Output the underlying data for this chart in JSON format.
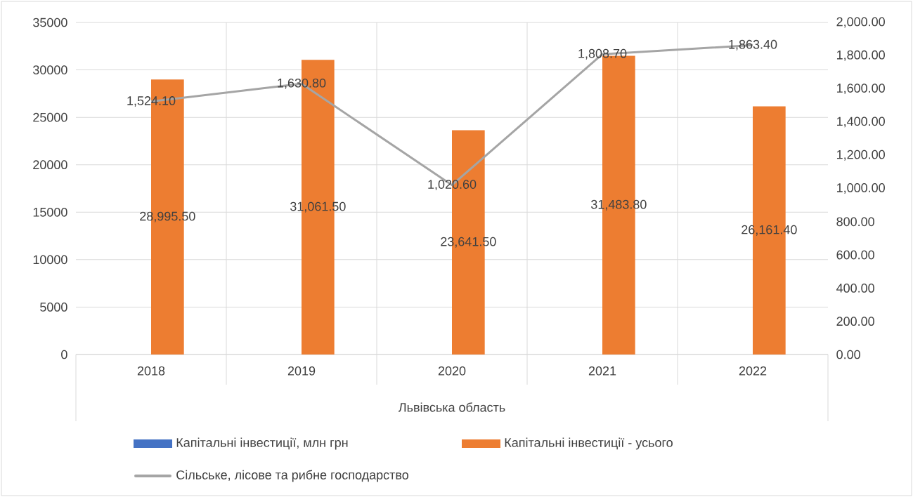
{
  "chart_data": {
    "type": "bar",
    "categories": [
      "2018",
      "2019",
      "2020",
      "2021",
      "2022"
    ],
    "xlabel": "Львівська область",
    "series": [
      {
        "name": "Капітальні інвестиції, млн грн",
        "color": "#4472c4",
        "values": [
          null,
          null,
          null,
          null,
          null
        ]
      },
      {
        "name": "Капітальні інвестиції - усього",
        "color": "#ed7d31",
        "values": [
          28995.5,
          31061.5,
          23641.5,
          31483.8,
          26161.4
        ],
        "value_labels": [
          "28,995.50",
          "31,061.50",
          "23,641.50",
          "31,483.80",
          "26,161.40"
        ]
      },
      {
        "name": "Сільське, лісове та рибне господарство",
        "color": "#a5a5a5",
        "type": "line",
        "axis": "y2",
        "line_style": "solid",
        "values": [
          1524.1,
          1630.8,
          1020.6,
          1808.7,
          1863.4
        ],
        "value_labels": [
          "1,524.10",
          "1,630.80",
          "1,020.60",
          "1,808.70",
          "1,863.40"
        ]
      }
    ],
    "ylim": [
      0,
      35000
    ],
    "yticks": [
      0,
      5000,
      10000,
      15000,
      20000,
      25000,
      30000,
      35000
    ],
    "y2lim": [
      0,
      2000
    ],
    "y2ticks": [
      {
        "value": 0,
        "label": "0.00"
      },
      {
        "value": 200,
        "label": "200.00"
      },
      {
        "value": 400,
        "label": "400.00"
      },
      {
        "value": 600,
        "label": "600.00"
      },
      {
        "value": 800,
        "label": "800.00"
      },
      {
        "value": 1000,
        "label": "1,000.00"
      },
      {
        "value": 1200,
        "label": "1,200.00"
      },
      {
        "value": 1400,
        "label": "1,400.00"
      },
      {
        "value": 1600,
        "label": "1,600.00"
      },
      {
        "value": 1800,
        "label": "1,800.00"
      },
      {
        "value": 2000,
        "label": "2,000.00"
      }
    ],
    "grid": true,
    "legend": "bottom"
  }
}
